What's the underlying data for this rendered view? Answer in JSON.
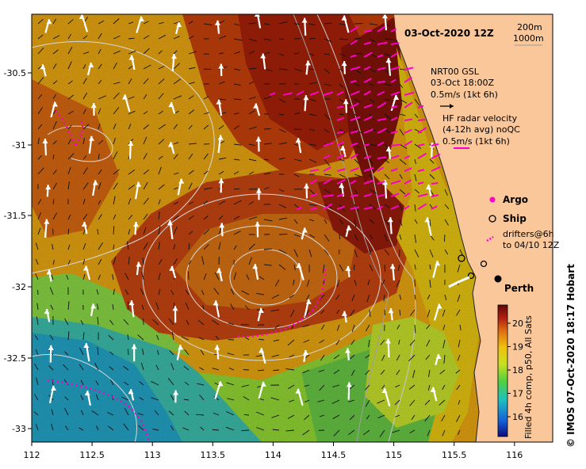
{
  "title": "03-Oct-2020 12Z",
  "depth_legend": [
    "200m",
    "1000m"
  ],
  "model_legend": {
    "line1": "NRT00 GSL",
    "line2": "03-Oct 18:00Z",
    "line3": "0.5m/s (1kt 6h)"
  },
  "radar_legend": {
    "line1": "HF radar velocity",
    "line2": "(4-12h avg) noQC",
    "line3": "0.5m/s (1kt 6h)"
  },
  "argo_label": "Argo",
  "ship_label": "Ship",
  "drifters_label": {
    "line1": "drifters@6h",
    "line2": "to 04/10 12Z"
  },
  "place_label": "Perth",
  "colorbar": {
    "ticks": [
      "16",
      "17",
      "18",
      "19",
      "20"
    ],
    "label": "Filled 4h comp, p50, All Sats"
  },
  "credit": "© IMOS 07-Oct-2020 18:17 Hobart",
  "x_ticks": [
    "112",
    "112.5",
    "113",
    "113.5",
    "114",
    "114.5",
    "115",
    "115.5",
    "116"
  ],
  "y_ticks": [
    "-30.5",
    "-31",
    "-31.5",
    "-32",
    "-32.5",
    "-33"
  ],
  "colors": {
    "land": "#f9c79a",
    "warm": "#8c1a0a",
    "mid": "#d8a008",
    "cool": "#20a8b0",
    "magenta": "#ff00cc"
  }
}
